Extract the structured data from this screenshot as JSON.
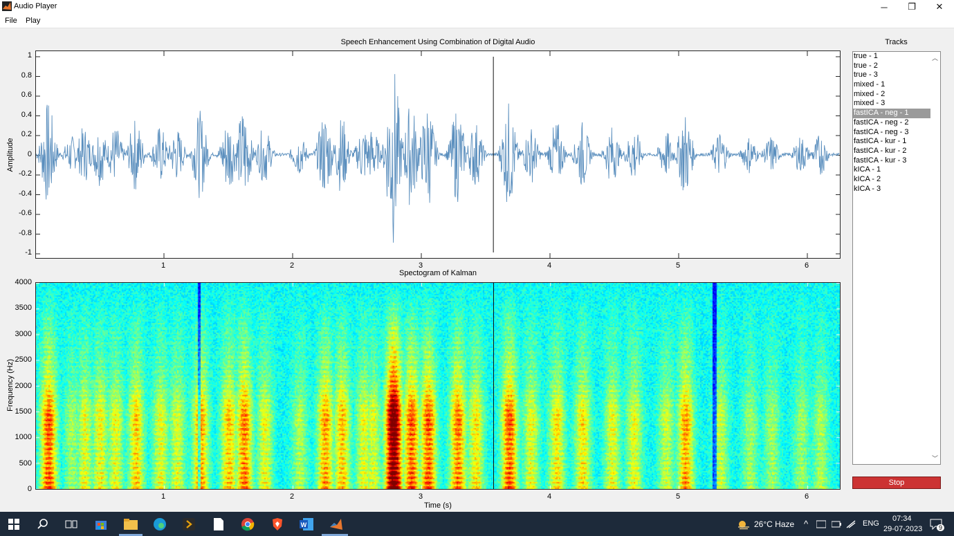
{
  "window": {
    "title": "Audio Player",
    "minimize_glyph": "─",
    "restore_glyph": "❐",
    "close_glyph": "✕"
  },
  "menu": [
    "File",
    "Play"
  ],
  "waveform": {
    "title": "Speech Enhancement Using Combination of Digital Audio",
    "ylabel": "Amplitude",
    "yticks": [
      "1",
      "0.8",
      "0.6",
      "0.4",
      "0.2",
      "0",
      "-0.2",
      "-0.4",
      "-0.6",
      "-0.8",
      "-1"
    ],
    "xticks": [
      "1",
      "2",
      "3",
      "4",
      "5",
      "6"
    ],
    "line_color": "#5b8fbe",
    "cursor_time_s": 3.56
  },
  "spectrogram": {
    "title": "Spectogram of Kalman",
    "ylabel": "Frequency (Hz)",
    "xlabel": "Time (s)",
    "yticks": [
      "4000",
      "3500",
      "3000",
      "2500",
      "2000",
      "1500",
      "1000",
      "500",
      "0"
    ],
    "xticks": [
      "1",
      "2",
      "3",
      "4",
      "5",
      "6"
    ],
    "cursor_time_s": 3.56
  },
  "tracks": {
    "title": "Tracks",
    "items": [
      "true - 1",
      "true - 2",
      "true - 3",
      "mixed - 1",
      "mixed - 2",
      "mixed - 3",
      "fastICA - neg - 1",
      "fastICA - neg - 2",
      "fastICA - neg - 3",
      "fastICA - kur - 1",
      "fastICA - kur - 2",
      "fastICA - kur - 3",
      "kICA - 1",
      "kICA - 2",
      "kICA - 3"
    ],
    "selected": "fastICA - neg - 1"
  },
  "stop_label": "Stop",
  "taskbar": {
    "weather": "26°C  Haze",
    "language": "ENG",
    "time": "07:34",
    "date": "29-07-2023",
    "notification_count": "9",
    "icons": [
      "windows-start-icon",
      "search-icon",
      "task-view-icon",
      "store-icon",
      "file-explorer-icon",
      "edge-icon",
      "plex-icon",
      "notepad-icon",
      "chrome-icon",
      "brave-icon",
      "word-icon",
      "matlab-icon"
    ]
  }
}
